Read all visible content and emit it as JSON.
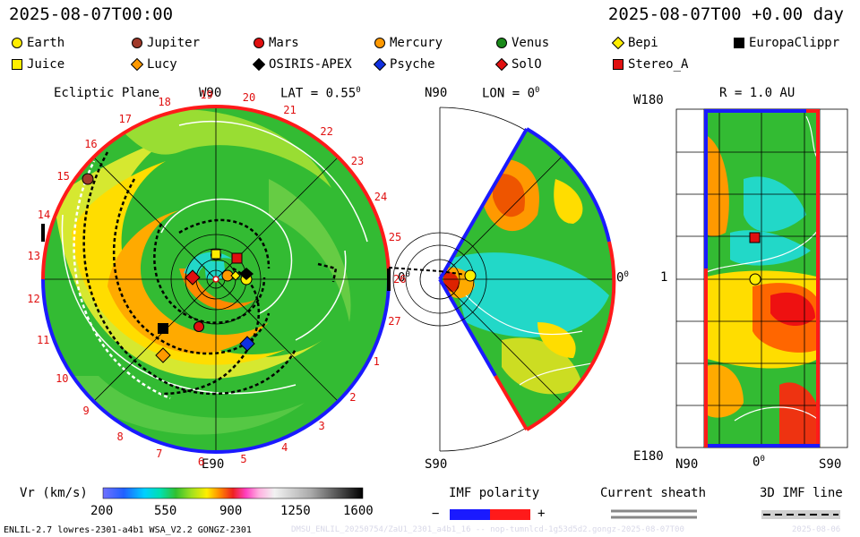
{
  "header": {
    "datetime_left": "2025-08-07T00:00",
    "datetime_right": "2025-08-07T00 +0.00 day"
  },
  "legend": [
    {
      "label": "Earth",
      "shape": "circle",
      "color": "#ffee00"
    },
    {
      "label": "Jupiter",
      "shape": "circle",
      "color": "#a03a2a"
    },
    {
      "label": "Mars",
      "shape": "circle",
      "color": "#e01010"
    },
    {
      "label": "Mercury",
      "shape": "circle",
      "color": "#ff9900"
    },
    {
      "label": "Venus",
      "shape": "circle",
      "color": "#1a8a1a"
    },
    {
      "label": "Bepi",
      "shape": "diamond",
      "color": "#ffee00"
    },
    {
      "label": "EuropaClippr",
      "shape": "square",
      "color": "#000000"
    },
    {
      "label": "Juice",
      "shape": "square",
      "color": "#ffee00"
    },
    {
      "label": "Lucy",
      "shape": "diamond",
      "color": "#ff9900"
    },
    {
      "label": "OSIRIS-APEX",
      "shape": "diamond",
      "color": "#000000"
    },
    {
      "label": "Psyche",
      "shape": "diamond",
      "color": "#1030e0"
    },
    {
      "label": "SolO",
      "shape": "diamond",
      "color": "#e01010"
    },
    {
      "label": "Stereo_A",
      "shape": "square",
      "color": "#e01010"
    }
  ],
  "panel_left": {
    "title": "Ecliptic Plane",
    "top": "W90",
    "lat": "LAT = 0.55",
    "lat_deg": "0",
    "bottom": "E90",
    "right": "0",
    "right_deg": "0",
    "ticks": [
      "10",
      "11",
      "12",
      "13",
      "14",
      "15",
      "16",
      "17",
      "18",
      "19",
      "20",
      "21",
      "22",
      "23",
      "24",
      "25",
      "26",
      "27",
      "1",
      "2",
      "3",
      "4",
      "5",
      "6",
      "7",
      "8",
      "9"
    ]
  },
  "panel_mid": {
    "top": "N90",
    "lon": "LON = 0",
    "lon_deg": "0",
    "bottom": "S90",
    "right": "0",
    "right_deg": "0"
  },
  "panel_right": {
    "title": "R = 1.0 AU",
    "top_left": "W180",
    "mid_left": "1",
    "bottom_left": "E180",
    "bottom_mid": "0",
    "bottom_mid_deg": "0",
    "bottom_left2": "N90",
    "bottom_right": "S90"
  },
  "colorbar": {
    "label": "Vr (km/s)",
    "ticks": [
      "200",
      "550",
      "900",
      "1250",
      "1600"
    ]
  },
  "imf_polarity": {
    "label": "IMF polarity",
    "minus": "−",
    "plus": "+",
    "neg_color": "#1a1aff",
    "pos_color": "#ff1a1a"
  },
  "current_sheath": {
    "label": "Current sheath"
  },
  "imf_line": {
    "label": "3D IMF line"
  },
  "footer": {
    "left": "ENLIL-2.7 lowres-2301-a4b1 WSA_V2.2 GONGZ-2301",
    "right_faint": "DMSU_ENLIL_20250754/ZaU1_2301_a4b1_16 -- nop-tumnlcd-1g53d5d2.gongz-2025-08-07T00",
    "date_faint": "2025-08-06"
  }
}
